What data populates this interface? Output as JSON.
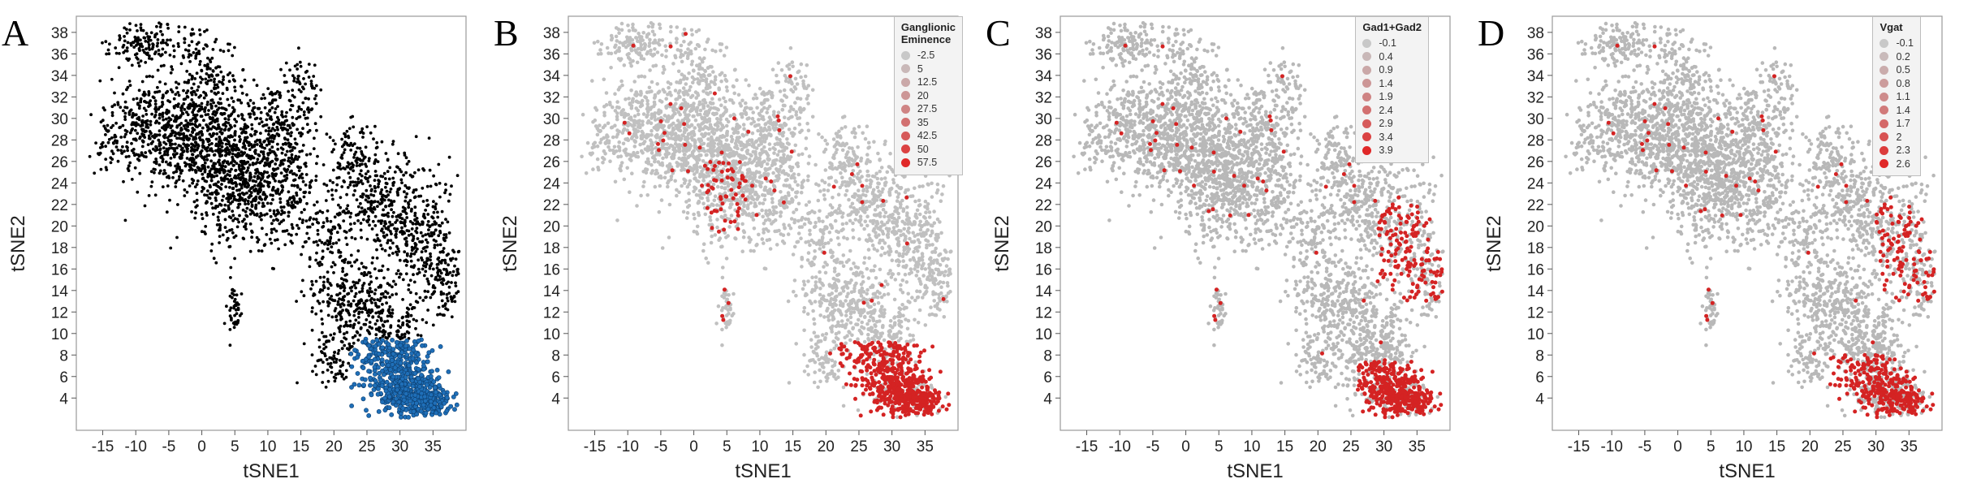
{
  "chart_data": [
    {
      "type": "scatter",
      "panel_label": "A",
      "title": "",
      "xlabel": "tSNE1",
      "ylabel": "tSNE2",
      "xlim": [
        -19,
        40
      ],
      "ylim": [
        1,
        39.5
      ],
      "xticks": [
        -15,
        -10,
        -5,
        0,
        5,
        10,
        15,
        20,
        25,
        30,
        35
      ],
      "yticks": [
        4,
        6,
        8,
        10,
        12,
        14,
        16,
        18,
        20,
        22,
        24,
        26,
        28,
        30,
        32,
        34,
        36,
        38
      ],
      "grid": false,
      "legend": null,
      "point_color": "#000000",
      "highlight_color": "#1f6fb8",
      "highlight_region": "lower-right cluster around x 23–37, y 3–9"
    },
    {
      "type": "scatter",
      "panel_label": "B",
      "title": "",
      "xlabel": "tSNE1",
      "ylabel": "tSNE2",
      "xlim": [
        -19,
        40
      ],
      "ylim": [
        1,
        39.5
      ],
      "xticks": [
        -15,
        -10,
        -5,
        0,
        5,
        10,
        15,
        20,
        25,
        30,
        35
      ],
      "yticks": [
        4,
        6,
        8,
        10,
        12,
        14,
        16,
        18,
        20,
        22,
        24,
        26,
        28,
        30,
        32,
        34,
        36,
        38
      ],
      "grid": false,
      "legend": {
        "placement": "top-right",
        "title_lines": [
          "Ganglionic",
          "Eminence"
        ],
        "entries": [
          "-2.5",
          "5",
          "12.5",
          "20",
          "27.5",
          "35",
          "42.5",
          "50",
          "57.5"
        ],
        "colors": [
          "#c8c8c8",
          "#c9b8b8",
          "#caa8a8",
          "#cc9696",
          "#cf8484",
          "#d27070",
          "#d65a5a",
          "#db4242",
          "#e02828"
        ]
      },
      "base_color": "#c0c0c0",
      "high_color": "#d42323"
    },
    {
      "type": "scatter",
      "panel_label": "C",
      "title": "",
      "xlabel": "tSNE1",
      "ylabel": "tSNE2",
      "xlim": [
        -19,
        40
      ],
      "ylim": [
        1,
        39.5
      ],
      "xticks": [
        -15,
        -10,
        -5,
        0,
        5,
        10,
        15,
        20,
        25,
        30,
        35
      ],
      "yticks": [
        4,
        6,
        8,
        10,
        12,
        14,
        16,
        18,
        20,
        22,
        24,
        26,
        28,
        30,
        32,
        34,
        36,
        38
      ],
      "grid": false,
      "legend": {
        "placement": "top-right",
        "title_lines": [
          "Gad1+Gad2"
        ],
        "entries": [
          "-0.1",
          "0.4",
          "0.9",
          "1.4",
          "1.9",
          "2.4",
          "2.9",
          "3.4",
          "3.9"
        ],
        "colors": [
          "#c8c8c8",
          "#c9b8b8",
          "#caa8a8",
          "#cc9696",
          "#cf8484",
          "#d27070",
          "#d65a5a",
          "#db4242",
          "#e02828"
        ]
      },
      "base_color": "#b8b8b8",
      "high_color": "#d42323"
    },
    {
      "type": "scatter",
      "panel_label": "D",
      "title": "",
      "xlabel": "tSNE1",
      "ylabel": "tSNE2",
      "xlim": [
        -19,
        40
      ],
      "ylim": [
        1,
        39.5
      ],
      "xticks": [
        -15,
        -10,
        -5,
        0,
        5,
        10,
        15,
        20,
        25,
        30,
        35
      ],
      "yticks": [
        4,
        6,
        8,
        10,
        12,
        14,
        16,
        18,
        20,
        22,
        24,
        26,
        28,
        30,
        32,
        34,
        36,
        38
      ],
      "grid": false,
      "legend": {
        "placement": "top-right",
        "title_lines": [
          "Vgat"
        ],
        "entries": [
          "-0.1",
          "0.2",
          "0.5",
          "0.8",
          "1.1",
          "1.4",
          "1.7",
          "2",
          "2.3",
          "2.6"
        ],
        "colors": [
          "#c8c8c8",
          "#c9baba",
          "#caacac",
          "#cc9c9c",
          "#ce8c8c",
          "#d17a7a",
          "#d46868",
          "#d85252",
          "#dc3c3c",
          "#e02828"
        ]
      },
      "base_color": "#b8b8b8",
      "high_color": "#d42323"
    }
  ]
}
